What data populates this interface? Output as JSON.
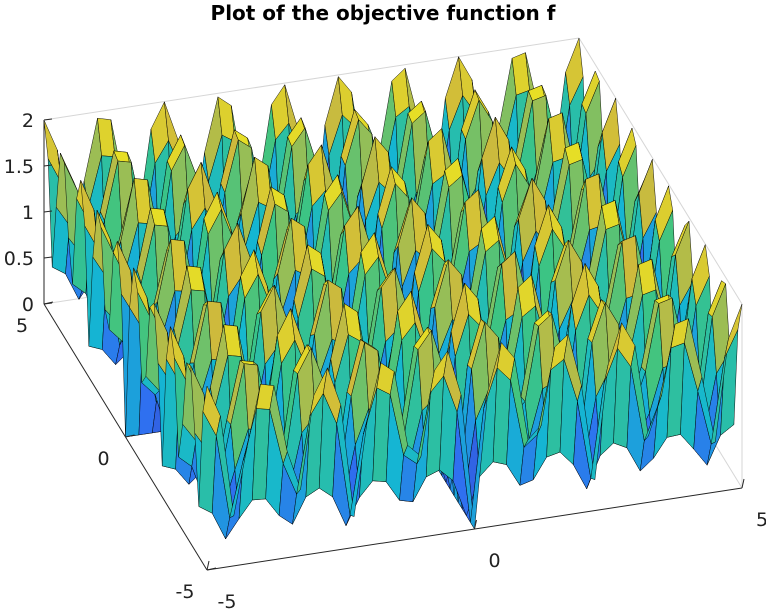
{
  "chart_data": {
    "type": "surface",
    "title": "Plot of the objective function f",
    "xlabel": "",
    "ylabel": "",
    "zlabel": "",
    "x_range": [
      -5,
      5
    ],
    "y_range": [
      -5,
      5
    ],
    "z_range": [
      0,
      2
    ],
    "x_ticks": [
      "-5",
      "0",
      "5"
    ],
    "y_ticks": [
      "-5",
      "0",
      "5"
    ],
    "z_ticks": [
      "0",
      "0.5",
      "1",
      "1.5",
      "2"
    ],
    "grid_points_per_axis": 41,
    "peaks_per_axis": 9,
    "peak_height": 2.0,
    "min_height": 0.0,
    "colormap": "parula",
    "colormap_stops": [
      "#3e26a8",
      "#2f6ff0",
      "#14b7d2",
      "#3dc482",
      "#cfba3b",
      "#f9fb15"
    ],
    "edge_color": "#000000",
    "grid": true
  }
}
